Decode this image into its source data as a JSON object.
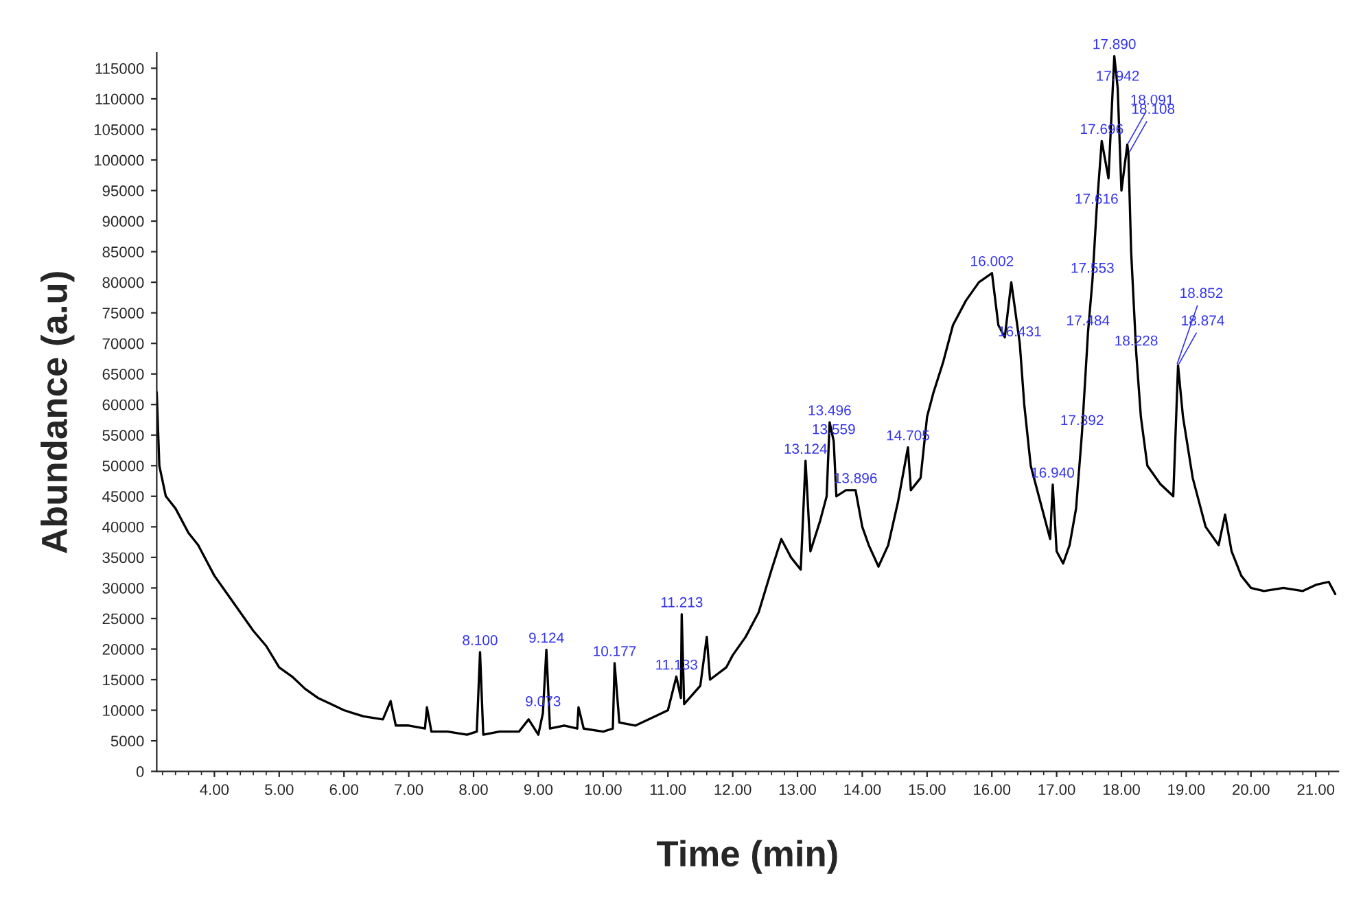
{
  "chart_data": {
    "type": "line",
    "xlabel": "Time (min)",
    "ylabel": "Abundance (a.u)",
    "xlim": [
      3.11,
      21.35
    ],
    "ylim": [
      0,
      117500
    ],
    "xticks": [
      {
        "value": 4,
        "label": "4.00"
      },
      {
        "value": 5,
        "label": "5.00"
      },
      {
        "value": 6,
        "label": "6.00"
      },
      {
        "value": 7,
        "label": "7.00"
      },
      {
        "value": 8,
        "label": "8.00"
      },
      {
        "value": 9,
        "label": "9.00"
      },
      {
        "value": 10,
        "label": "10.00"
      },
      {
        "value": 11,
        "label": "11.00"
      },
      {
        "value": 12,
        "label": "12.00"
      },
      {
        "value": 13,
        "label": "13.00"
      },
      {
        "value": 14,
        "label": "14.00"
      },
      {
        "value": 15,
        "label": "15.00"
      },
      {
        "value": 16,
        "label": "16.00"
      },
      {
        "value": 17,
        "label": "17.00"
      },
      {
        "value": 18,
        "label": "18.00"
      },
      {
        "value": 19,
        "label": "19.00"
      },
      {
        "value": 20,
        "label": "20.00"
      },
      {
        "value": 21,
        "label": "21.00"
      }
    ],
    "yticks": [
      0,
      5000,
      10000,
      15000,
      20000,
      25000,
      30000,
      35000,
      40000,
      45000,
      50000,
      55000,
      60000,
      65000,
      70000,
      75000,
      80000,
      85000,
      90000,
      95000,
      100000,
      105000,
      110000,
      115000
    ],
    "grid": false,
    "legend": false,
    "marker": "none",
    "line_style": "solid",
    "series": [
      {
        "color": "#000000",
        "x": [
          3.11,
          3.15,
          3.25,
          3.4,
          3.6,
          3.75,
          3.8,
          4.0,
          4.2,
          4.4,
          4.6,
          4.8,
          5.0,
          5.2,
          5.4,
          5.6,
          5.8,
          6.0,
          6.3,
          6.6,
          6.72,
          6.8,
          7.0,
          7.25,
          7.28,
          7.35,
          7.6,
          7.9,
          8.05,
          8.1,
          8.15,
          8.4,
          8.7,
          8.85,
          9.0,
          9.07,
          9.124,
          9.18,
          9.4,
          9.6,
          9.62,
          9.7,
          10.0,
          10.15,
          10.177,
          10.25,
          10.5,
          10.8,
          11.0,
          11.13,
          11.2,
          11.213,
          11.25,
          11.5,
          11.6,
          11.65,
          11.9,
          12.0,
          12.2,
          12.4,
          12.6,
          12.75,
          12.9,
          13.05,
          13.124,
          13.2,
          13.35,
          13.45,
          13.496,
          13.559,
          13.6,
          13.75,
          13.896,
          14.0,
          14.1,
          14.25,
          14.4,
          14.55,
          14.705,
          14.75,
          14.9,
          15.0,
          15.1,
          15.25,
          15.4,
          15.6,
          15.8,
          16.002,
          16.1,
          16.2,
          16.3,
          16.431,
          16.5,
          16.6,
          16.8,
          16.9,
          16.94,
          17.0,
          17.1,
          17.2,
          17.3,
          17.392,
          17.484,
          17.553,
          17.616,
          17.696,
          17.8,
          17.89,
          17.942,
          18.0,
          18.091,
          18.108,
          18.15,
          18.228,
          18.3,
          18.4,
          18.6,
          18.8,
          18.874,
          18.95,
          19.1,
          19.3,
          19.5,
          19.6,
          19.7,
          19.85,
          20.0,
          20.2,
          20.5,
          20.8,
          21.0,
          21.2,
          21.3
        ],
        "values": [
          62000,
          50000,
          45000,
          43000,
          39000,
          37000,
          36000,
          32000,
          29000,
          26000,
          23000,
          20500,
          17000,
          15500,
          13500,
          12000,
          11000,
          10000,
          9000,
          8500,
          11500,
          7500,
          7500,
          7000,
          10500,
          6500,
          6500,
          6000,
          6500,
          19500,
          6000,
          6500,
          6500,
          8500,
          6000,
          9500,
          19900,
          7000,
          7500,
          7000,
          10500,
          7000,
          6500,
          7000,
          17700,
          8000,
          7500,
          9000,
          10000,
          15500,
          12000,
          25700,
          11000,
          14000,
          22000,
          15000,
          17000,
          19000,
          22000,
          26000,
          33000,
          38000,
          35000,
          33000,
          50800,
          36000,
          41000,
          45000,
          57100,
          54000,
          45000,
          46000,
          46000,
          40000,
          37000,
          33500,
          37000,
          44000,
          53000,
          46000,
          48000,
          58000,
          62000,
          67000,
          73000,
          77000,
          80000,
          81500,
          73000,
          71000,
          80000,
          70000,
          60000,
          50000,
          42000,
          38000,
          46900,
          36000,
          34000,
          37000,
          43000,
          55500,
          71800,
          80400,
          91700,
          103100,
          97000,
          117000,
          111800,
          95000,
          102500,
          101000,
          85000,
          68500,
          58000,
          50000,
          47000,
          45000,
          66400,
          58000,
          48000,
          40000,
          37000,
          42000,
          36000,
          32000,
          30000,
          29500,
          30000,
          29500,
          30500,
          31000,
          29000
        ]
      }
    ],
    "annotations": [
      {
        "text": "8.100",
        "x": 8.1,
        "y": 19500
      },
      {
        "text": "9.124",
        "x": 9.124,
        "y": 19900
      },
      {
        "text": "9.073",
        "x": 9.073,
        "y": 9500
      },
      {
        "text": "10.177",
        "x": 10.177,
        "y": 17700
      },
      {
        "text": "11.213",
        "x": 11.213,
        "y": 25700
      },
      {
        "text": "11.133",
        "x": 11.133,
        "y": 15500
      },
      {
        "text": "13.124",
        "x": 13.124,
        "y": 50800
      },
      {
        "text": "13.496",
        "x": 13.496,
        "y": 57100
      },
      {
        "text": "13.559",
        "x": 13.559,
        "y": 54000
      },
      {
        "text": "13.896",
        "x": 13.896,
        "y": 46000
      },
      {
        "text": "14.705",
        "x": 14.705,
        "y": 53000
      },
      {
        "text": "16.002",
        "x": 16.002,
        "y": 81500
      },
      {
        "text": "16.431",
        "x": 16.431,
        "y": 70000
      },
      {
        "text": "16.940",
        "x": 16.94,
        "y": 46900
      },
      {
        "text": "17.392",
        "x": 17.392,
        "y": 55500
      },
      {
        "text": "17.484",
        "x": 17.484,
        "y": 71800
      },
      {
        "text": "17.553",
        "x": 17.553,
        "y": 80400
      },
      {
        "text": "17.616",
        "x": 17.616,
        "y": 91700
      },
      {
        "text": "17.696",
        "x": 17.696,
        "y": 103100
      },
      {
        "text": "17.890",
        "x": 17.89,
        "y": 117000
      },
      {
        "text": "17.942",
        "x": 17.942,
        "y": 111800
      },
      {
        "text": "18.091",
        "x": 18.091,
        "y": 102500
      },
      {
        "text": "18.108",
        "x": 18.108,
        "y": 101000
      },
      {
        "text": "18.228",
        "x": 18.228,
        "y": 68500
      },
      {
        "text": "18.874",
        "x": 18.874,
        "y": 66400
      },
      {
        "text": "18.852",
        "x": 18.852,
        "y": 66400
      }
    ]
  }
}
